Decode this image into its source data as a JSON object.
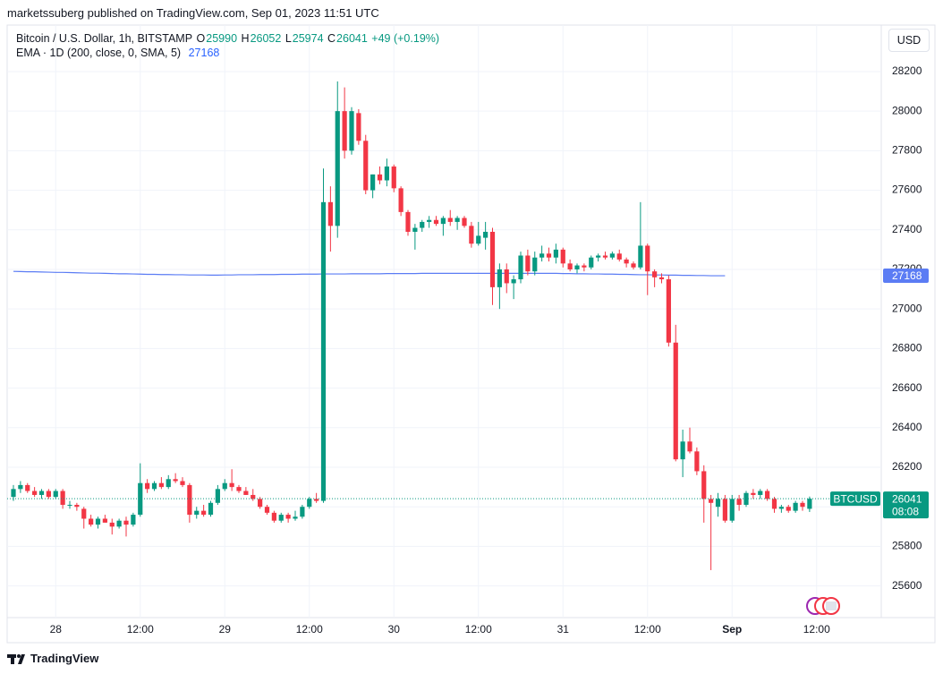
{
  "header": {
    "publisher": "marketssuberg published on TradingView.com, Sep 01, 2023 11:51 UTC"
  },
  "chart_data": {
    "type": "candlestick",
    "title": "Bitcoin / U.S. Dollar, 1h, BITSTAMP",
    "ohlc_labels": [
      "O",
      "H",
      "L",
      "C"
    ],
    "change": "+49 (+0.19%)",
    "categories": [
      null,
      null,
      null,
      null,
      null,
      null,
      "28",
      null,
      null,
      null,
      null,
      null,
      null,
      null,
      null,
      null,
      null,
      null,
      "12:00",
      null,
      null,
      null,
      null,
      null,
      null,
      null,
      null,
      null,
      null,
      null,
      "29",
      null,
      null,
      null,
      null,
      null,
      null,
      null,
      null,
      null,
      null,
      null,
      "12:00",
      null,
      null,
      null,
      null,
      null,
      null,
      null,
      null,
      null,
      null,
      null,
      "30",
      null,
      null,
      null,
      null,
      null,
      null,
      null,
      null,
      null,
      null,
      null,
      "12:00",
      null,
      null,
      null,
      null,
      null,
      null,
      null,
      null,
      null,
      null,
      null,
      "31",
      null,
      null,
      null,
      null,
      null,
      null,
      null,
      null,
      null,
      null,
      null,
      "12:00",
      null,
      null,
      null,
      null,
      null,
      null,
      null,
      null,
      null,
      null,
      null,
      "Sep",
      null,
      null,
      null,
      null,
      null,
      null,
      null,
      null,
      null,
      null,
      null,
      "12:00"
    ],
    "open": [
      26050,
      26090,
      26110,
      26080,
      26060,
      26080,
      26050,
      26080,
      26010,
      26010,
      25990,
      25940,
      25910,
      25940,
      25920,
      25900,
      25930,
      25910,
      25960,
      26120,
      26090,
      26120,
      26100,
      26140,
      26130,
      26110,
      25960,
      25980,
      25960,
      26020,
      26090,
      26120,
      26100,
      26080,
      26060,
      26040,
      26000,
      25970,
      25930,
      25960,
      25940,
      25950,
      26000,
      26040,
      26030,
      27540,
      27420,
      28000,
      27800,
      27990,
      27850,
      27600,
      27680,
      27650,
      27720,
      27610,
      27490,
      27390,
      27410,
      27440,
      27450,
      27430,
      27460,
      27440,
      27460,
      27420,
      27330,
      27360,
      27390,
      27110,
      27200,
      27130,
      27150,
      27270,
      27190,
      27260,
      27280,
      27260,
      27300,
      27230,
      27200,
      27220,
      27210,
      27260,
      27270,
      27260,
      27280,
      27250,
      27230,
      27210,
      27320,
      27190,
      27160,
      27150,
      26830,
      26240,
      26330,
      26280,
      26180,
      26040,
      26000,
      26040,
      25930,
      26040,
      26010,
      26070,
      26060,
      26080,
      26040,
      25990,
      26000,
      25980,
      26020,
      25990,
      null
    ],
    "high": [
      26110,
      26130,
      26120,
      26100,
      26090,
      26090,
      26090,
      26090,
      26030,
      26020,
      26000,
      25960,
      25950,
      25960,
      25940,
      25940,
      25950,
      25970,
      26220,
      26140,
      26130,
      26150,
      26160,
      26170,
      26150,
      26120,
      26000,
      26010,
      26030,
      26110,
      26140,
      26190,
      26110,
      26100,
      26090,
      26050,
      26010,
      25980,
      25970,
      25970,
      25980,
      26010,
      26050,
      26070,
      27710,
      27620,
      28150,
      28120,
      28020,
      28010,
      27880,
      27680,
      27720,
      27760,
      27730,
      27620,
      27500,
      27430,
      27450,
      27470,
      27470,
      27470,
      27500,
      27470,
      27470,
      27440,
      27440,
      27440,
      27410,
      27230,
      27230,
      27170,
      27290,
      27300,
      27290,
      27320,
      27310,
      27330,
      27310,
      27250,
      27230,
      27230,
      27270,
      27280,
      27290,
      27290,
      27300,
      27260,
      27240,
      27540,
      27330,
      27200,
      27180,
      27170,
      26920,
      26390,
      26400,
      26300,
      26210,
      26060,
      26070,
      26060,
      26060,
      26060,
      26080,
      26090,
      26090,
      26090,
      26050,
      26010,
      26010,
      26030,
      26030,
      26052,
      null
    ],
    "low": [
      26030,
      26070,
      26070,
      26050,
      26040,
      26040,
      26040,
      25990,
      25990,
      25980,
      25890,
      25900,
      25890,
      25920,
      25860,
      25890,
      25850,
      25900,
      25950,
      26070,
      26080,
      26090,
      26090,
      26120,
      26100,
      25920,
      25940,
      25950,
      25950,
      26010,
      26080,
      26080,
      26070,
      26060,
      26030,
      25990,
      25960,
      25920,
      25920,
      25920,
      25930,
      25940,
      25990,
      26020,
      26020,
      27290,
      27360,
      27760,
      27780,
      27830,
      27580,
      27560,
      27630,
      27620,
      27590,
      27470,
      27370,
      27300,
      27390,
      27410,
      27420,
      27370,
      27420,
      27400,
      27410,
      27310,
      27320,
      27300,
      27020,
      27000,
      27080,
      27050,
      27130,
      27170,
      27170,
      27240,
      27240,
      27230,
      27210,
      27190,
      27180,
      27190,
      27200,
      27240,
      27250,
      27250,
      27240,
      27210,
      27200,
      27200,
      27070,
      27110,
      27130,
      26810,
      26230,
      26150,
      26270,
      26160,
      25920,
      25680,
      25950,
      25920,
      25920,
      25980,
      26000,
      26040,
      26040,
      26030,
      25970,
      25970,
      25970,
      25970,
      25980,
      25974,
      null
    ],
    "close": [
      26090,
      26110,
      26080,
      26060,
      26080,
      26050,
      26080,
      26010,
      26010,
      26000,
      25940,
      25910,
      25940,
      25920,
      25900,
      25930,
      25910,
      25960,
      26120,
      26090,
      26120,
      26100,
      26140,
      26130,
      26110,
      25960,
      25980,
      25960,
      26020,
      26090,
      26120,
      26100,
      26080,
      26060,
      26040,
      26000,
      25970,
      25930,
      25960,
      25940,
      25950,
      26000,
      26040,
      26030,
      27540,
      27420,
      28000,
      27800,
      28000,
      27850,
      27600,
      27680,
      27650,
      27720,
      27610,
      27490,
      27390,
      27410,
      27440,
      27450,
      27430,
      27460,
      27440,
      27460,
      27420,
      27330,
      27370,
      27390,
      27110,
      27200,
      27130,
      27150,
      27270,
      27190,
      27260,
      27280,
      27260,
      27300,
      27230,
      27200,
      27220,
      27210,
      27260,
      27270,
      27260,
      27280,
      27250,
      27230,
      27210,
      27320,
      27190,
      27160,
      27150,
      26830,
      26240,
      26330,
      26280,
      26180,
      26040,
      26020,
      26040,
      25930,
      26040,
      26010,
      26070,
      26060,
      26080,
      26040,
      25990,
      26000,
      25980,
      26020,
      26000,
      26041,
      null
    ],
    "up_color": "#089981",
    "down_color": "#f23645",
    "ema": {
      "name": "EMA · 1D (200, close, 0, SMA, 5)",
      "color": "#5b7cf4",
      "values": [
        27190,
        27189,
        27188,
        27188,
        27187,
        27186,
        27185,
        27185,
        27184,
        27183,
        27182,
        27181,
        27181,
        27180,
        27179,
        27178,
        27178,
        27177,
        27176,
        27175,
        27175,
        27174,
        27174,
        27173,
        27173,
        27172,
        27172,
        27172,
        27171,
        27171,
        27172,
        27172,
        27173,
        27173,
        27173,
        27174,
        27174,
        27174,
        27175,
        27175,
        27175,
        27176,
        27176,
        27176,
        27177,
        27177,
        27177,
        27177,
        27178,
        27178,
        27178,
        27178,
        27178,
        27179,
        27179,
        27179,
        27179,
        27179,
        27180,
        27180,
        27180,
        27180,
        27180,
        27180,
        27180,
        27180,
        27180,
        27180,
        27180,
        27180,
        27180,
        27180,
        27180,
        27180,
        27180,
        27180,
        27180,
        27180,
        27179,
        27179,
        27178,
        27178,
        27177,
        27177,
        27176,
        27176,
        27175,
        27175,
        27174,
        27173,
        27173,
        27172,
        27172,
        27171,
        27171,
        27170,
        27170,
        27169,
        27169,
        27168,
        27168,
        27168,
        null,
        null,
        null,
        null,
        null,
        null,
        null,
        null,
        null,
        null,
        null,
        null,
        null
      ]
    },
    "ylim": [
      25440,
      28435
    ],
    "yticks": [
      25600,
      25800,
      26000,
      26200,
      26400,
      26600,
      26800,
      27000,
      27200,
      27400,
      27600,
      27800,
      28000,
      28200
    ],
    "grid": true,
    "symbol": "BTCUSD",
    "countdown": "08:08",
    "currency": "USD"
  },
  "footer": {
    "brand": "TradingView"
  }
}
